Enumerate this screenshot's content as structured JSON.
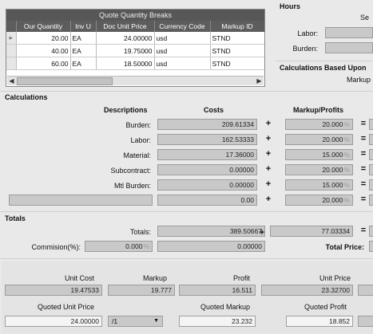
{
  "quote_grid": {
    "title": "Quote Quantity Breaks",
    "columns": [
      "Our Quantity",
      "Inv U",
      "Doc Unit Price",
      "Currency Code",
      "Markup ID"
    ],
    "rows": [
      {
        "qty": "20.00",
        "uom": "EA",
        "price": "24.00000",
        "currency": "usd",
        "markup": "STND"
      },
      {
        "qty": "40.00",
        "uom": "EA",
        "price": "19.75000",
        "currency": "usd",
        "markup": "STND"
      },
      {
        "qty": "60.00",
        "uom": "EA",
        "price": "18.50000",
        "currency": "usd",
        "markup": "STND"
      }
    ]
  },
  "hours": {
    "title": "Hours",
    "se_label": "Se",
    "labor_label": "Labor:",
    "burden_label": "Burden:"
  },
  "calc_based": {
    "title": "Calculations Based Upon",
    "markup_label": "Markup"
  },
  "calculations": {
    "title": "Calculations",
    "hdr_desc": "Descriptions",
    "hdr_costs": "Costs",
    "hdr_markup": "Markup/Profits",
    "rows": [
      {
        "label": "Burden:",
        "cost": "209.61334",
        "markup": "20.000"
      },
      {
        "label": "Labor:",
        "cost": "162.53333",
        "markup": "20.000"
      },
      {
        "label": "Material:",
        "cost": "17.36000",
        "markup": "15.000"
      },
      {
        "label": "Subcontract:",
        "cost": "0.00000",
        "markup": "20.000"
      },
      {
        "label": "Mtl Burden:",
        "cost": "0.00000",
        "markup": "15.000"
      },
      {
        "label": "",
        "cost": "0.00",
        "markup": "20.000"
      }
    ],
    "pct": "%",
    "plus": "+",
    "equals": "="
  },
  "totals": {
    "title": "Totals",
    "totals_label": "Totals:",
    "totals_cost": "389.50667",
    "totals_markup": "77.03334",
    "commission_label": "Commision(%):",
    "commission_pct": "0.000",
    "commission_amount": "0.00000",
    "total_price_label": "Total Price:"
  },
  "summary": {
    "unit_cost_label": "Unit Cost",
    "unit_cost": "19.47533",
    "markup_label": "Markup",
    "markup": "19.777",
    "profit_label": "Profit",
    "profit": "16.511",
    "unit_price_label": "Unit Price",
    "unit_price": "23.32700",
    "quoted_unit_price_label": "Quoted Unit Price",
    "quoted_unit_price": "24.00000",
    "per_value": "/1",
    "quoted_markup_label": "Quoted Markup",
    "quoted_markup": "23.232",
    "quoted_profit_label": "Quoted Profit",
    "quoted_profit": "18.852"
  }
}
